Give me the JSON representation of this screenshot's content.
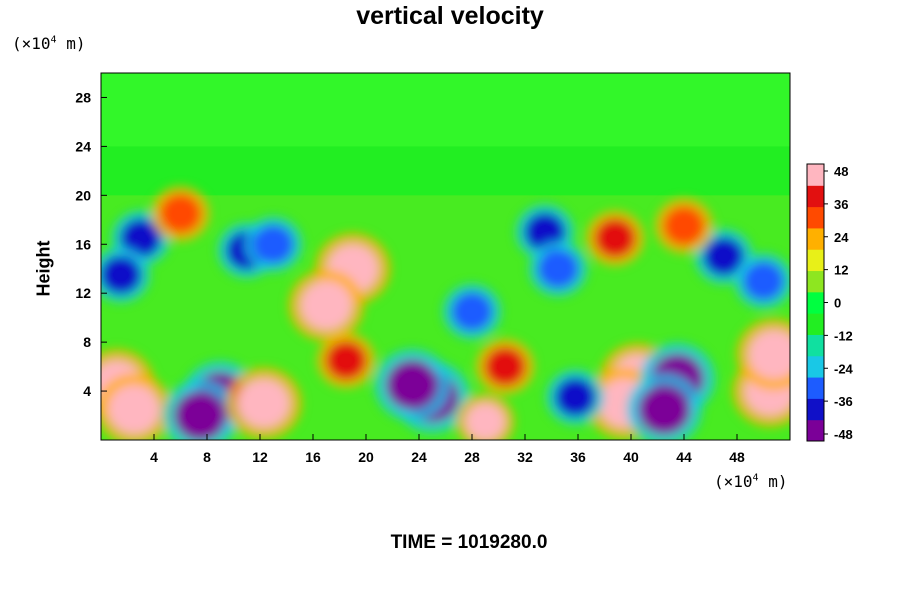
{
  "chart_data": {
    "type": "heatmap",
    "title": "vertical velocity",
    "ylabel": "Height",
    "xlabel": "",
    "x_unit": "(×10",
    "x_unit_exp": "4",
    "x_unit_suffix": " m)",
    "y_unit": "(×10",
    "y_unit_exp": "4",
    "y_unit_suffix": " m)",
    "xlim": [
      0,
      52
    ],
    "ylim": [
      0,
      30
    ],
    "x_ticks": [
      4,
      8,
      12,
      16,
      20,
      24,
      28,
      32,
      36,
      40,
      44,
      48
    ],
    "y_ticks": [
      4,
      8,
      12,
      16,
      20,
      24,
      28
    ],
    "colorbar": {
      "min": -48,
      "max": 48,
      "ticks": [
        48,
        36,
        24,
        12,
        0,
        -12,
        -24,
        -36,
        -48
      ],
      "colors": [
        "#7b0098",
        "#1010c8",
        "#1d5cff",
        "#19c8e6",
        "#10e0a0",
        "#22ee22",
        "#00ff40",
        "#8ee620",
        "#e8f018",
        "#ffb000",
        "#ff4a00",
        "#e21010",
        "#ffb6c0"
      ]
    },
    "features": [
      {
        "x": 1.2,
        "y": 4.5,
        "v": 48
      },
      {
        "x": 2.5,
        "y": 2.5,
        "v": 48
      },
      {
        "x": 9.0,
        "y": 3.5,
        "v": -48
      },
      {
        "x": 7.5,
        "y": 2.0,
        "v": -48
      },
      {
        "x": 12.3,
        "y": 3.0,
        "v": 48
      },
      {
        "x": 25.0,
        "y": 3.5,
        "v": -48
      },
      {
        "x": 23.5,
        "y": 4.5,
        "v": -48
      },
      {
        "x": 29.0,
        "y": 1.5,
        "v": 42
      },
      {
        "x": 19.0,
        "y": 14.0,
        "v": 48
      },
      {
        "x": 17.0,
        "y": 11.0,
        "v": 44
      },
      {
        "x": 18.5,
        "y": 6.5,
        "v": 40
      },
      {
        "x": 40.5,
        "y": 5.0,
        "v": 48
      },
      {
        "x": 39.5,
        "y": 3.0,
        "v": 46
      },
      {
        "x": 43.5,
        "y": 5.0,
        "v": -48
      },
      {
        "x": 42.5,
        "y": 2.5,
        "v": -46
      },
      {
        "x": 50.5,
        "y": 4.0,
        "v": 48
      },
      {
        "x": 50.8,
        "y": 7.0,
        "v": 44
      },
      {
        "x": 3.0,
        "y": 16.5,
        "v": -36
      },
      {
        "x": 1.5,
        "y": 13.5,
        "v": -40
      },
      {
        "x": 11.0,
        "y": 15.5,
        "v": -36
      },
      {
        "x": 13.0,
        "y": 16.0,
        "v": -30
      },
      {
        "x": 33.5,
        "y": 17.0,
        "v": -36
      },
      {
        "x": 34.5,
        "y": 14.0,
        "v": -30
      },
      {
        "x": 38.8,
        "y": 16.5,
        "v": 40
      },
      {
        "x": 35.8,
        "y": 3.5,
        "v": -36
      },
      {
        "x": 47.0,
        "y": 15.0,
        "v": -34
      },
      {
        "x": 50.0,
        "y": 13.0,
        "v": -30
      },
      {
        "x": 28.0,
        "y": 10.5,
        "v": -28
      },
      {
        "x": 6.0,
        "y": 18.5,
        "v": 30
      },
      {
        "x": 44.0,
        "y": 17.5,
        "v": 26
      },
      {
        "x": 30.5,
        "y": 6.0,
        "v": 34
      }
    ]
  },
  "footer": {
    "time_label": "TIME = 1019280.0"
  }
}
